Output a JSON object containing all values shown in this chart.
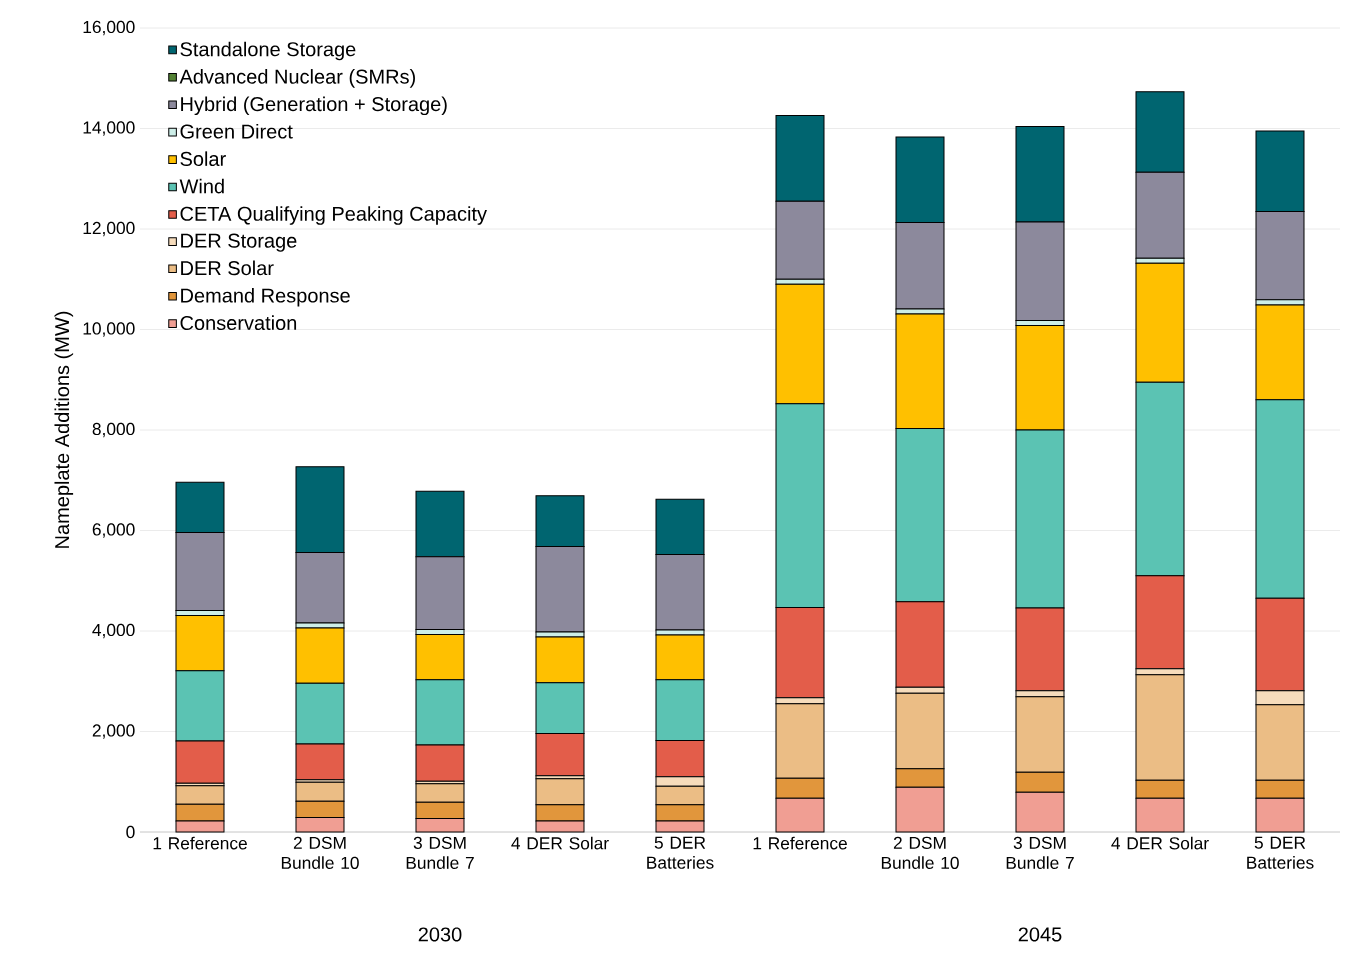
{
  "chart_data": {
    "type": "bar",
    "stacked": true,
    "ylabel": "Nameplate Additions (MW)",
    "categories": [
      "1 Reference",
      "2 DSM Bundle 10",
      "3 DSM Bundle 7",
      "4 DER Solar",
      "5 DER Batteries",
      "1 Reference",
      "2 DSM Bundle 10",
      "3 DSM Bundle 7",
      "4 DER Solar",
      "5 DER Batteries"
    ],
    "annotations": [
      "2030",
      "2045"
    ],
    "series": [
      {
        "name": "Conservation",
        "color": "#f09e93",
        "values": [
          220,
          290,
          270,
          220,
          220,
          670,
          890,
          790,
          670,
          670
        ]
      },
      {
        "name": "Demand Response",
        "color": "#e1963c",
        "values": [
          330,
          320,
          320,
          320,
          320,
          400,
          370,
          400,
          360,
          360
        ]
      },
      {
        "name": "DER Solar",
        "color": "#ebbd85",
        "values": [
          370,
          380,
          370,
          520,
          370,
          1480,
          1500,
          1500,
          2100,
          1500
        ]
      },
      {
        "name": "DER Storage",
        "color": "#f6dcbc",
        "values": [
          50,
          50,
          50,
          60,
          190,
          120,
          120,
          120,
          120,
          280
        ]
      },
      {
        "name": "CETA Qualifying Peaking Capacity",
        "color": "#e35d4a",
        "values": [
          840,
          710,
          720,
          840,
          720,
          1800,
          1700,
          1650,
          1850,
          1840
        ]
      },
      {
        "name": "Wind",
        "color": "#5bc3b3",
        "values": [
          1400,
          1210,
          1300,
          1010,
          1210,
          4050,
          3450,
          3540,
          3850,
          3950
        ]
      },
      {
        "name": "Solar",
        "color": "#ffc000",
        "values": [
          1100,
          1100,
          900,
          910,
          890,
          2380,
          2280,
          2080,
          2370,
          1890
        ]
      },
      {
        "name": "Green Direct",
        "color": "#cdeee8",
        "values": [
          100,
          100,
          100,
          100,
          100,
          100,
          100,
          100,
          100,
          100
        ]
      },
      {
        "name": "Hybrid (Generation + Storage)",
        "color": "#8c899c",
        "values": [
          1550,
          1400,
          1450,
          1700,
          1500,
          1550,
          1720,
          1960,
          1710,
          1760
        ]
      },
      {
        "name": "Advanced Nuclear (SMRs)",
        "color": "#548235",
        "values": [
          0,
          0,
          0,
          0,
          0,
          0,
          0,
          0,
          0,
          0
        ]
      },
      {
        "name": "Standalone Storage",
        "color": "#006570",
        "values": [
          1000,
          1710,
          1300,
          1010,
          1100,
          1710,
          1700,
          1900,
          1600,
          1600
        ]
      }
    ],
    "ylim": [
      0,
      16000
    ],
    "yticks": [
      {
        "value": 0,
        "label": "0"
      },
      {
        "value": 2000,
        "label": "2,000"
      },
      {
        "value": 4000,
        "label": "4,000"
      },
      {
        "value": 6000,
        "label": "6,000"
      },
      {
        "value": 8000,
        "label": "8,000"
      },
      {
        "value": 10000,
        "label": "10,000"
      },
      {
        "value": 12000,
        "label": "12,000"
      },
      {
        "value": 14000,
        "label": "14,000"
      },
      {
        "value": 16000,
        "label": "16,000"
      }
    ],
    "grid": "y",
    "legend": "top left"
  }
}
